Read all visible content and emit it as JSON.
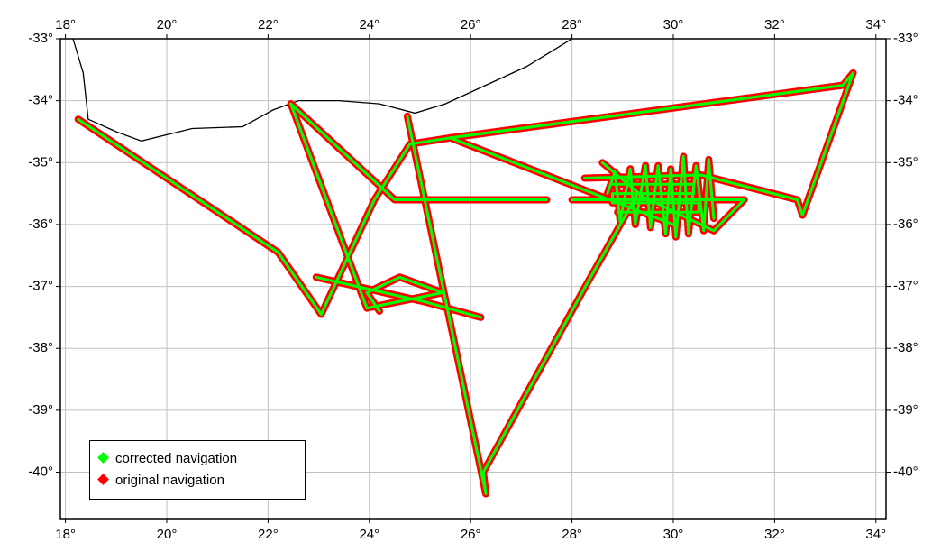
{
  "map": {
    "lon_range": [
      17.9,
      34.2
    ],
    "lat_range": [
      -40.75,
      -33.0
    ],
    "lon_ticks": [
      18,
      20,
      22,
      24,
      26,
      28,
      30,
      32,
      34
    ],
    "lat_ticks": [
      -33,
      -34,
      -35,
      -36,
      -37,
      -38,
      -39,
      -40
    ],
    "lon_tick_labels": [
      "18°",
      "20°",
      "22°",
      "24°",
      "26°",
      "28°",
      "30°",
      "32°",
      "34°"
    ],
    "lat_tick_labels": [
      "-33°",
      "-34°",
      "-35°",
      "-36°",
      "-37°",
      "-38°",
      "-39°",
      "-40°"
    ],
    "grid": true,
    "frame_color": "#000000",
    "grid_color": "#c0c0c0",
    "coastline_color": "#000000",
    "coastline": [
      [
        18.15,
        -33.0
      ],
      [
        18.35,
        -33.55
      ],
      [
        18.45,
        -34.3
      ],
      [
        19.0,
        -34.5
      ],
      [
        19.5,
        -34.65
      ],
      [
        20.5,
        -34.45
      ],
      [
        21.5,
        -34.42
      ],
      [
        22.1,
        -34.15
      ],
      [
        22.6,
        -34.0
      ],
      [
        23.4,
        -34.0
      ],
      [
        24.2,
        -34.05
      ],
      [
        24.9,
        -34.2
      ],
      [
        25.5,
        -34.05
      ],
      [
        26.3,
        -33.75
      ],
      [
        27.1,
        -33.45
      ],
      [
        27.8,
        -33.1
      ],
      [
        28.0,
        -33.0
      ]
    ]
  },
  "tracks": {
    "corrected_color": "#00ff00",
    "original_color": "#ff0000",
    "segments": [
      [
        [
          18.25,
          -34.3
        ],
        [
          22.2,
          -36.45
        ],
        [
          23.05,
          -37.45
        ],
        [
          24.1,
          -35.6
        ],
        [
          24.8,
          -34.7
        ],
        [
          25.6,
          -34.6
        ],
        [
          33.35,
          -33.75
        ],
        [
          33.55,
          -33.55
        ],
        [
          32.55,
          -35.85
        ],
        [
          32.45,
          -35.6
        ],
        [
          30.55,
          -35.2
        ],
        [
          28.25,
          -35.25
        ]
      ],
      [
        [
          22.45,
          -34.05
        ],
        [
          23.95,
          -37.35
        ],
        [
          25.45,
          -37.1
        ],
        [
          24.6,
          -36.85
        ],
        [
          23.95,
          -37.1
        ],
        [
          24.2,
          -37.4
        ]
      ],
      [
        [
          22.45,
          -34.05
        ],
        [
          24.5,
          -35.6
        ],
        [
          27.5,
          -35.6
        ]
      ],
      [
        [
          28.0,
          -35.6
        ],
        [
          31.4,
          -35.6
        ],
        [
          30.8,
          -36.1
        ],
        [
          29.4,
          -35.55
        ],
        [
          28.6,
          -35.0
        ]
      ],
      [
        [
          24.75,
          -34.25
        ],
        [
          26.3,
          -40.35
        ],
        [
          26.25,
          -40.0
        ],
        [
          28.3,
          -36.95
        ],
        [
          29.3,
          -35.5
        ]
      ],
      [
        [
          22.95,
          -36.85
        ],
        [
          25.1,
          -37.25
        ],
        [
          26.2,
          -37.5
        ]
      ],
      [
        [
          25.6,
          -34.6
        ],
        [
          30.0,
          -36.0
        ]
      ],
      [
        [
          28.7,
          -35.5
        ],
        [
          28.85,
          -35.15
        ],
        [
          28.95,
          -35.95
        ],
        [
          29.15,
          -35.1
        ],
        [
          29.25,
          -36.0
        ],
        [
          29.45,
          -35.05
        ],
        [
          29.55,
          -36.05
        ],
        [
          29.7,
          -35.05
        ],
        [
          29.85,
          -36.15
        ],
        [
          29.95,
          -35.1
        ],
        [
          30.05,
          -36.2
        ],
        [
          30.2,
          -34.9
        ],
        [
          30.3,
          -36.15
        ],
        [
          30.45,
          -35.05
        ],
        [
          30.6,
          -36.1
        ],
        [
          30.7,
          -34.95
        ],
        [
          30.8,
          -35.9
        ]
      ],
      [
        [
          28.8,
          -35.35
        ],
        [
          30.4,
          -35.35
        ],
        [
          30.4,
          -35.5
        ],
        [
          28.8,
          -35.5
        ],
        [
          28.8,
          -35.65
        ],
        [
          30.5,
          -35.65
        ],
        [
          30.5,
          -35.8
        ],
        [
          28.9,
          -35.8
        ]
      ]
    ]
  },
  "legend": {
    "items": [
      {
        "label": "corrected navigation",
        "color": "#00ff00"
      },
      {
        "label": "original navigation",
        "color": "#ff0000"
      }
    ]
  }
}
